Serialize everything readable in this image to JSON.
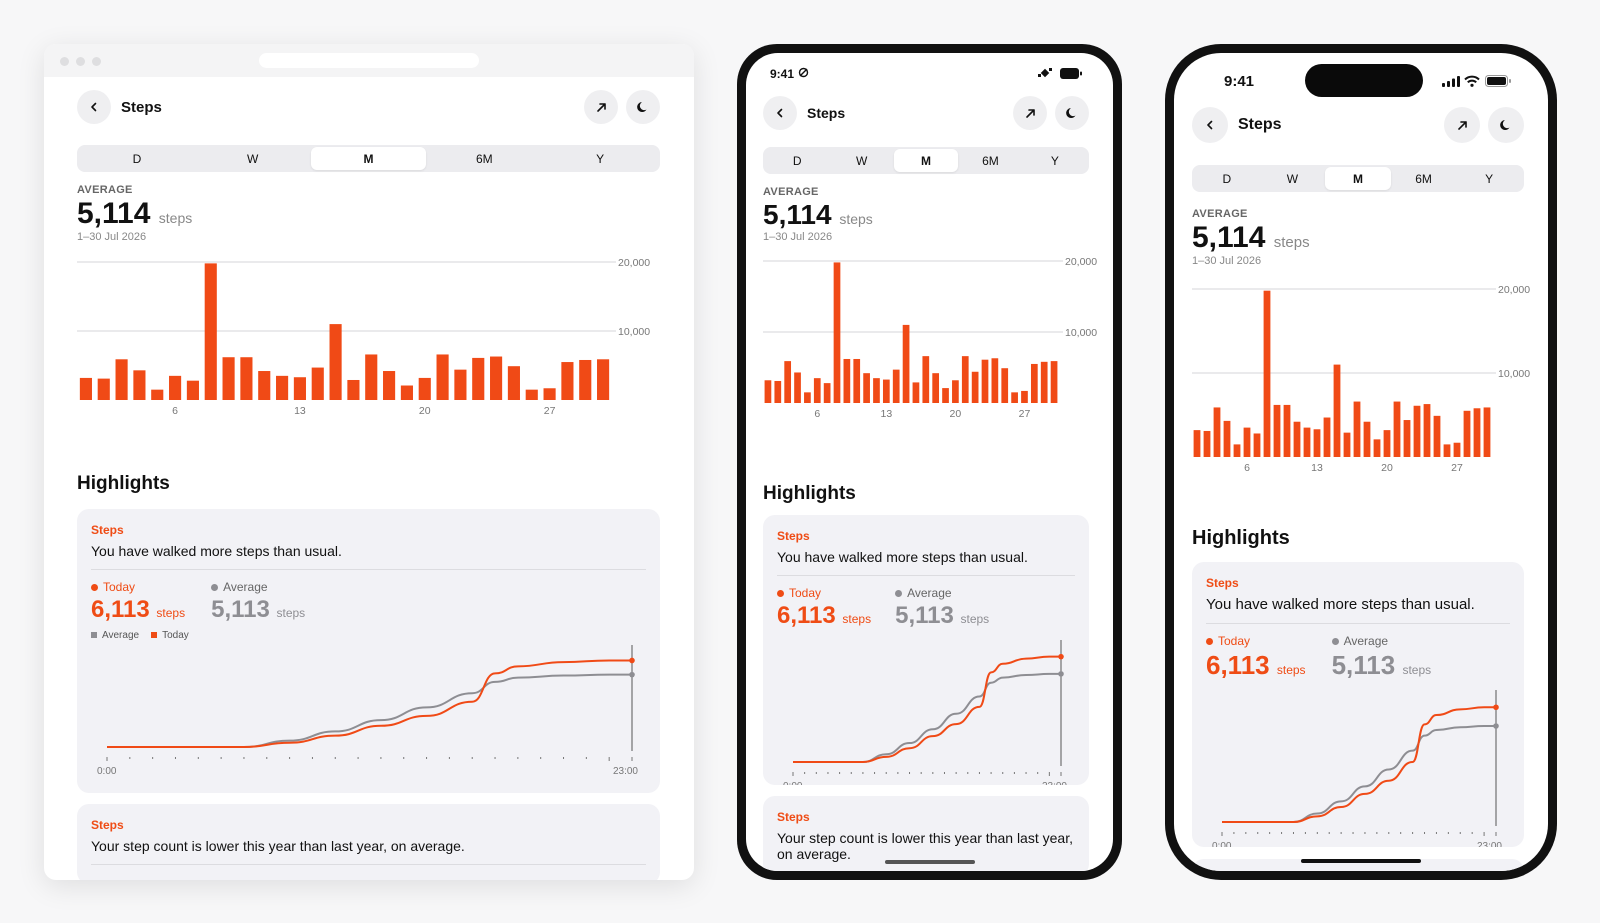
{
  "nav": {
    "title": "Steps",
    "back_icon": "chevron-left-icon",
    "share_icon": "arrow-up-right-icon",
    "theme_icon": "moon-icon"
  },
  "status": {
    "time": "9:41"
  },
  "tabs": [
    {
      "label": "D",
      "active": false
    },
    {
      "label": "W",
      "active": false
    },
    {
      "label": "M",
      "active": true
    },
    {
      "label": "6M",
      "active": false
    },
    {
      "label": "Y",
      "active": false
    }
  ],
  "summary": {
    "label": "AVERAGE",
    "value": "5,114",
    "unit": "steps",
    "date_range": "1–30 Jul 2026"
  },
  "chart_data": {
    "type": "bar",
    "x": [
      1,
      2,
      3,
      4,
      5,
      6,
      7,
      8,
      9,
      10,
      11,
      12,
      13,
      14,
      15,
      16,
      17,
      18,
      19,
      20,
      21,
      22,
      23,
      24,
      25,
      26,
      27,
      28,
      29,
      30
    ],
    "values": [
      3200,
      3100,
      5900,
      4300,
      1500,
      3500,
      2800,
      19800,
      6200,
      6200,
      4200,
      3500,
      3300,
      4700,
      11000,
      2900,
      6600,
      4200,
      2100,
      3200,
      6600,
      4400,
      6100,
      6300,
      4900,
      1500,
      1700,
      5500,
      5800,
      5900
    ],
    "x_ticks": [
      "6",
      "13",
      "20",
      "27"
    ],
    "y_ticks": [
      "10,000",
      "20,000"
    ],
    "ylim": [
      0,
      20000
    ],
    "color": "#f04a16"
  },
  "highlights": {
    "title": "Highlights",
    "card1": {
      "kicker": "Steps",
      "message": "You have walked more steps than usual.",
      "today_label": "Today",
      "today_value": "6,113",
      "today_unit": "steps",
      "avg_label": "Average",
      "avg_value": "5,113",
      "avg_unit": "steps",
      "legend_avg": "Average",
      "legend_today": "Today",
      "x_start": "0:00",
      "x_end": "23:00",
      "line_chart": {
        "type": "line",
        "x": [
          0,
          2,
          4,
          6,
          8,
          10,
          12,
          14,
          16,
          17,
          18,
          20,
          22,
          23
        ],
        "series": [
          {
            "name": "Today",
            "color": "#f04a16",
            "values": [
              0,
              0,
              0,
              0,
              300,
              800,
              1500,
              2200,
              3200,
              5200,
              5700,
              6000,
              6113,
              6113
            ]
          },
          {
            "name": "Average",
            "color": "#8e8e93",
            "values": [
              0,
              0,
              0,
              0,
              450,
              1100,
              1900,
              2800,
              3800,
              4600,
              4900,
              5050,
              5113,
              5113
            ]
          }
        ],
        "ylim": [
          0,
          6500
        ]
      }
    },
    "card2": {
      "kicker": "Steps",
      "message": "Your step count is lower this year than last year, on average."
    }
  }
}
